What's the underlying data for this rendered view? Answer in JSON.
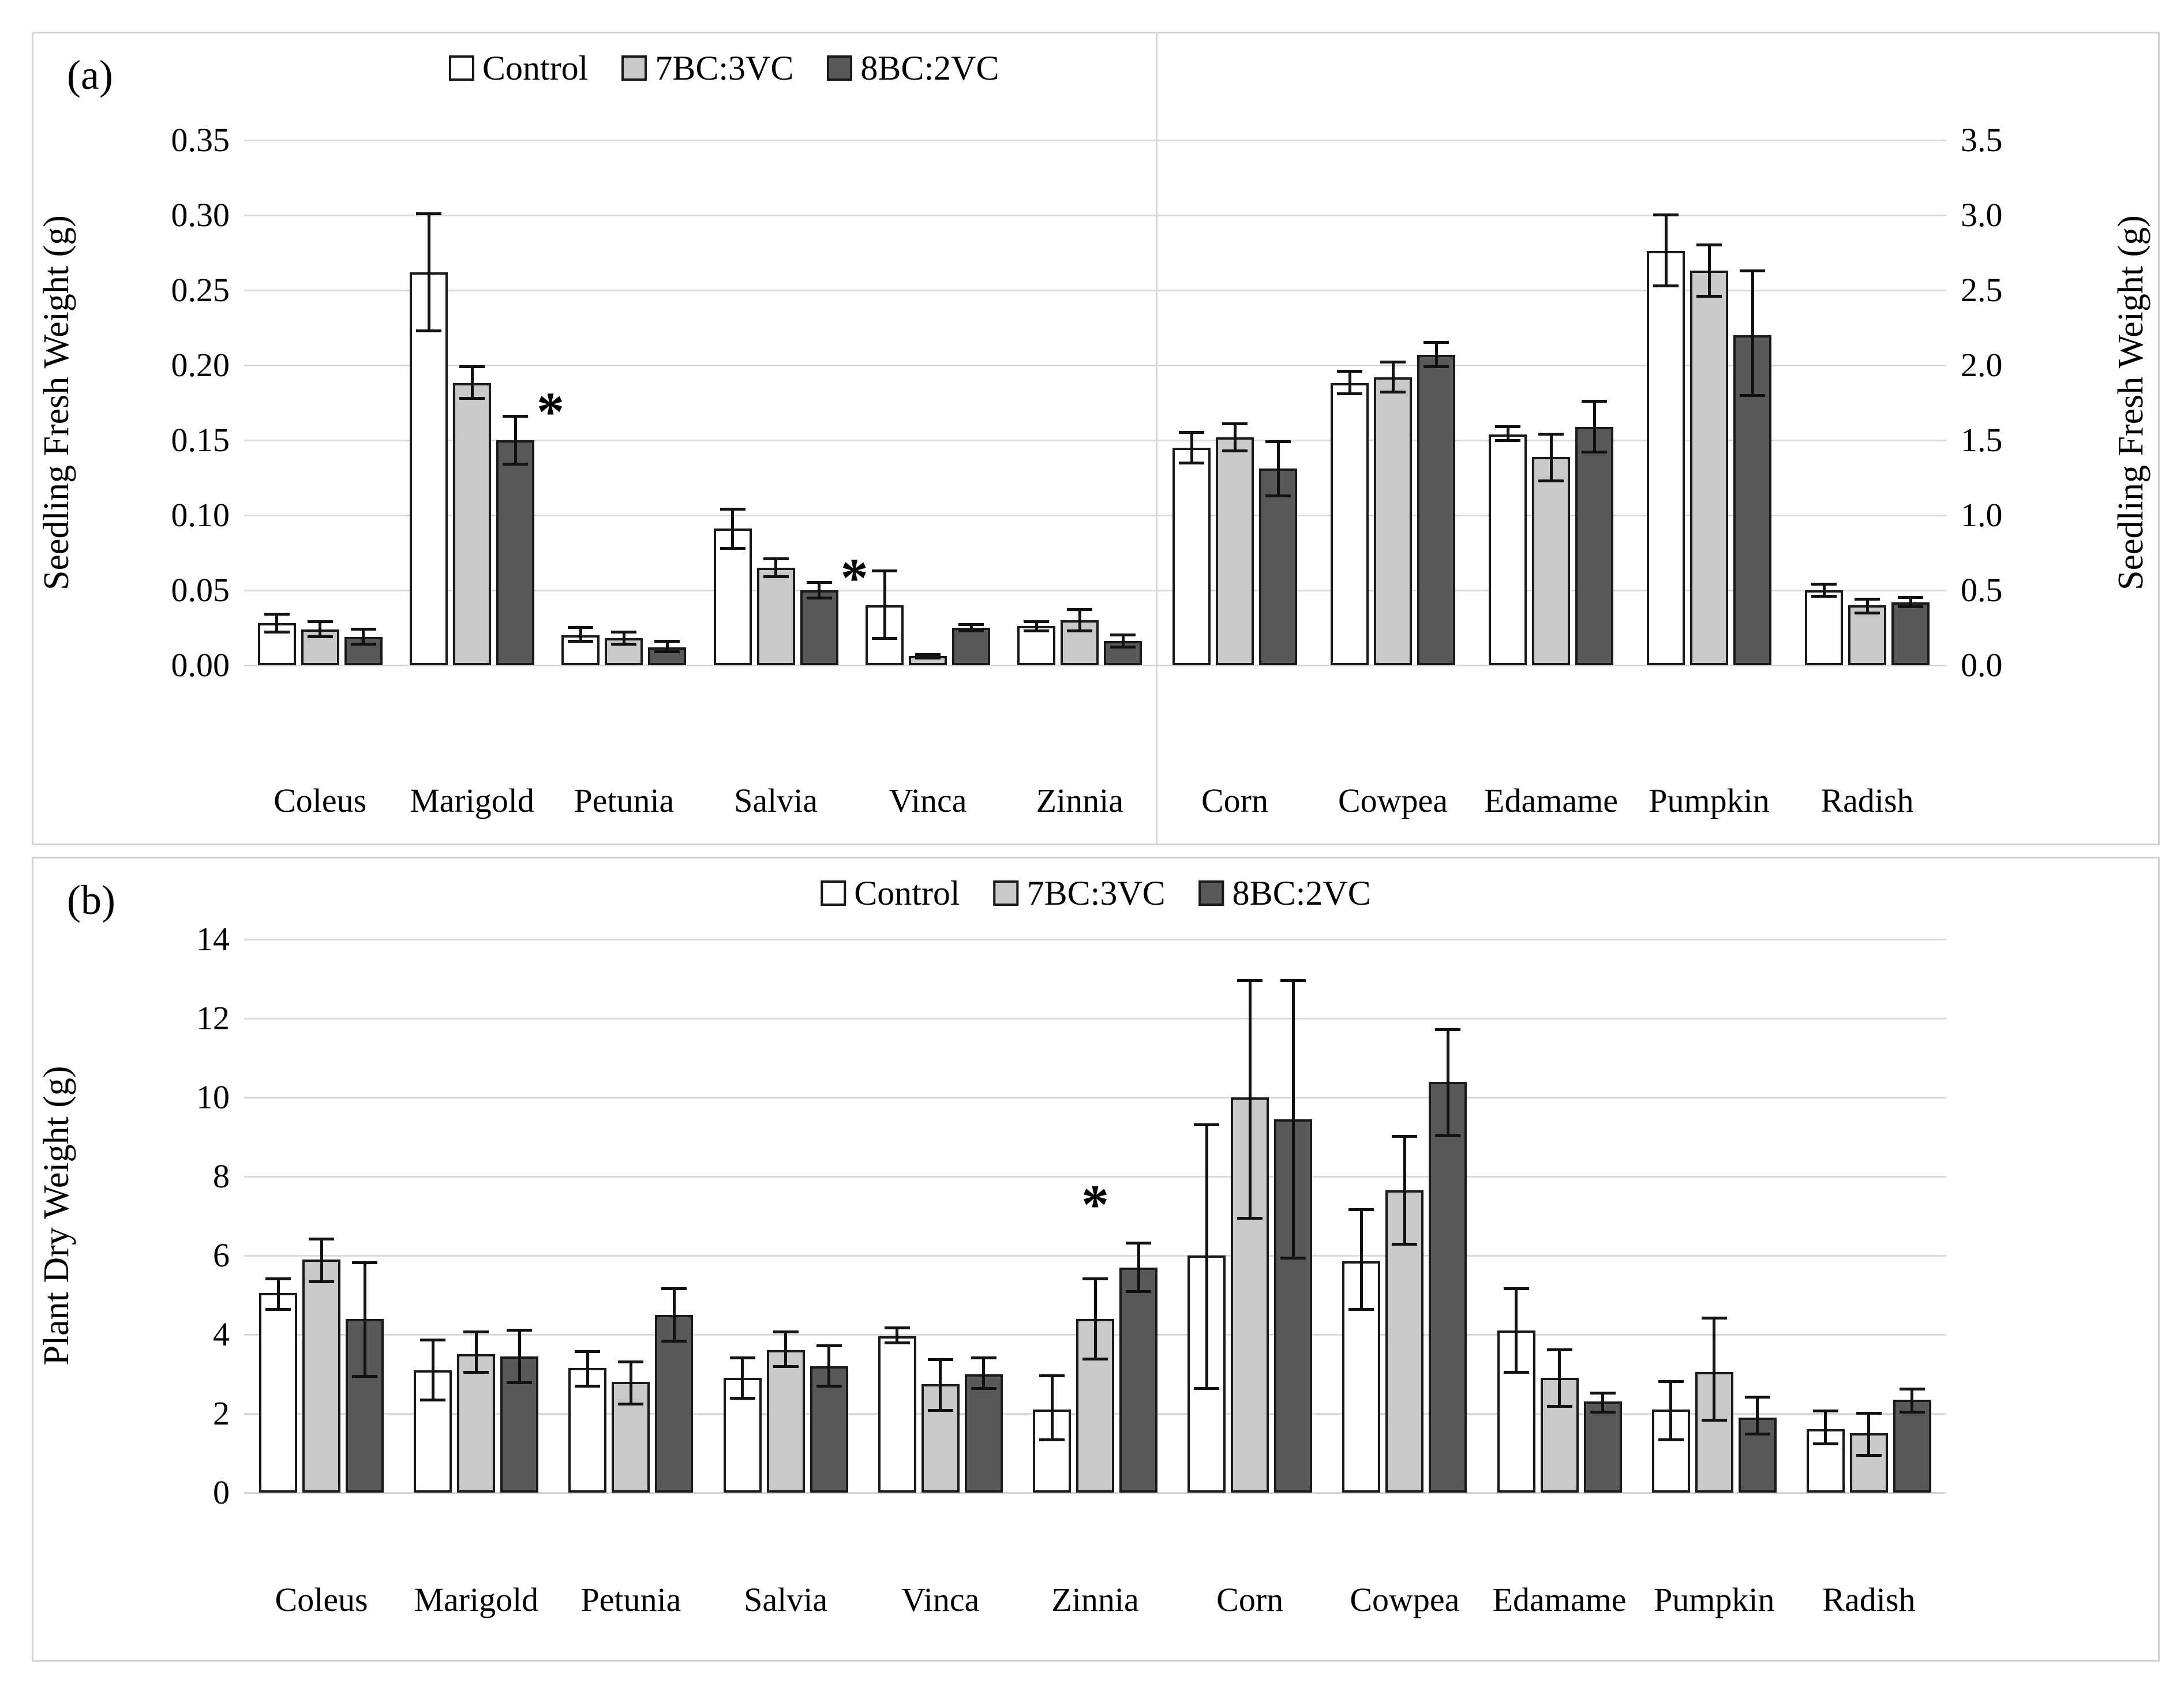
{
  "chart_data": [
    {
      "id": "panel_a",
      "type": "bar",
      "panel_label": "(a)",
      "title": "",
      "legend": [
        "Control",
        "7BC:3VC",
        "8BC:2VC"
      ],
      "legend_position": "top",
      "grid": true,
      "series_colors": [
        "#ffffff",
        "#c9c9c9",
        "#595959"
      ],
      "left_axis": {
        "label": "Seedling Fresh Weight (g)",
        "min": 0,
        "max": 0.35,
        "tick_step": 0.05,
        "ticks": [
          "0.00",
          "0.05",
          "0.10",
          "0.15",
          "0.20",
          "0.25",
          "0.30",
          "0.35"
        ]
      },
      "right_axis": {
        "label": "Seedling Fresh Weight (g)",
        "min": 0,
        "max": 3.5,
        "tick_step": 0.5,
        "ticks": [
          "0.0",
          "0.5",
          "1.0",
          "1.5",
          "2.0",
          "2.5",
          "3.0",
          "3.5"
        ]
      },
      "groups": [
        {
          "axis": "left",
          "categories": [
            "Coleus",
            "Marigold",
            "Petunia",
            "Salvia",
            "Vinca",
            "Zinnia"
          ],
          "series": [
            {
              "name": "Control",
              "values": [
                0.028,
                0.262,
                0.02,
                0.091,
                0.04,
                0.026
              ],
              "err_low": [
                0.021,
                0.222,
                0.015,
                0.077,
                0.017,
                0.022
              ],
              "err_high": [
                0.035,
                0.302,
                0.026,
                0.105,
                0.064,
                0.03
              ]
            },
            {
              "name": "7BC:3VC",
              "values": [
                0.024,
                0.188,
                0.018,
                0.065,
                0.006,
                0.03
              ],
              "err_low": [
                0.018,
                0.177,
                0.013,
                0.058,
                0.004,
                0.022
              ],
              "err_high": [
                0.03,
                0.2,
                0.023,
                0.072,
                0.008,
                0.038
              ]
            },
            {
              "name": "8BC:2VC",
              "values": [
                0.019,
                0.15,
                0.012,
                0.05,
                0.025,
                0.016
              ],
              "err_low": [
                0.013,
                0.133,
                0.008,
                0.044,
                0.022,
                0.011
              ],
              "err_high": [
                0.025,
                0.167,
                0.017,
                0.056,
                0.028,
                0.021
              ]
            }
          ]
        },
        {
          "axis": "right",
          "categories": [
            "Corn",
            "Cowpea",
            "Edamame",
            "Pumpkin",
            "Radish"
          ],
          "series": [
            {
              "name": "Control",
              "values": [
                1.45,
                1.88,
                1.54,
                2.76,
                0.5
              ],
              "err_low": [
                1.34,
                1.8,
                1.49,
                2.52,
                0.45
              ],
              "err_high": [
                1.56,
                1.97,
                1.6,
                3.01,
                0.55
              ]
            },
            {
              "name": "7BC:3VC",
              "values": [
                1.52,
                1.92,
                1.39,
                2.63,
                0.4
              ],
              "err_low": [
                1.42,
                1.81,
                1.22,
                2.45,
                0.34
              ],
              "err_high": [
                1.62,
                2.03,
                1.55,
                2.81,
                0.45
              ]
            },
            {
              "name": "8BC:2VC",
              "values": [
                1.31,
                2.07,
                1.59,
                2.2,
                0.42
              ],
              "err_low": [
                1.12,
                1.98,
                1.41,
                1.79,
                0.38
              ],
              "err_high": [
                1.5,
                2.16,
                1.77,
                2.64,
                0.46
              ]
            }
          ]
        }
      ],
      "annotations": [
        {
          "group": 0,
          "category": "Marigold",
          "series": 2,
          "text": "*",
          "placement": "right"
        },
        {
          "group": 0,
          "category": "Salvia",
          "series": 2,
          "text": "*",
          "placement": "right"
        }
      ]
    },
    {
      "id": "panel_b",
      "type": "bar",
      "panel_label": "(b)",
      "title": "",
      "legend": [
        "Control",
        "7BC:3VC",
        "8BC:2VC"
      ],
      "legend_position": "top",
      "grid": true,
      "series_colors": [
        "#ffffff",
        "#c9c9c9",
        "#595959"
      ],
      "left_axis": {
        "label": "Plant Dry Weight (g)",
        "min": 0,
        "max": 14,
        "tick_step": 2,
        "ticks": [
          "0",
          "2",
          "4",
          "6",
          "8",
          "10",
          "12",
          "14"
        ]
      },
      "groups": [
        {
          "axis": "left",
          "categories": [
            "Coleus",
            "Marigold",
            "Petunia",
            "Salvia",
            "Vinca",
            "Zinnia",
            "Corn",
            "Cowpea",
            "Edamame",
            "Pumpkin",
            "Radish"
          ],
          "series": [
            {
              "name": "Control",
              "values": [
                5.05,
                3.1,
                3.15,
                2.9,
                3.95,
                2.1,
                6.0,
                5.85,
                4.1,
                2.1,
                1.6
              ],
              "err_low": [
                4.6,
                2.3,
                2.65,
                2.35,
                3.75,
                1.3,
                2.6,
                4.6,
                3.0,
                1.3,
                1.2
              ],
              "err_high": [
                5.45,
                3.9,
                3.6,
                3.45,
                4.2,
                3.0,
                9.35,
                7.2,
                5.2,
                2.85,
                2.1
              ]
            },
            {
              "name": "7BC:3VC",
              "values": [
                5.9,
                3.5,
                2.8,
                3.6,
                2.75,
                4.4,
                10.0,
                7.65,
                2.9,
                3.05,
                1.5
              ],
              "err_low": [
                5.3,
                3.0,
                2.2,
                3.15,
                2.05,
                3.35,
                6.9,
                6.25,
                2.15,
                1.8,
                0.9
              ],
              "err_high": [
                6.45,
                4.1,
                3.35,
                4.1,
                3.4,
                5.45,
                13.0,
                9.05,
                3.65,
                4.45,
                2.05
              ]
            },
            {
              "name": "8BC:2VC",
              "values": [
                4.4,
                3.45,
                4.5,
                3.2,
                3.0,
                5.7,
                9.45,
                10.4,
                2.3,
                1.9,
                2.35
              ],
              "err_low": [
                2.9,
                2.75,
                3.8,
                2.65,
                2.6,
                5.05,
                5.9,
                9.0,
                2.0,
                1.45,
                2.0
              ],
              "err_high": [
                5.85,
                4.15,
                5.2,
                3.75,
                3.45,
                6.35,
                13.0,
                11.75,
                2.55,
                2.45,
                2.65
              ]
            }
          ]
        }
      ],
      "annotations": [
        {
          "group": 0,
          "category": "Zinnia",
          "series": 2,
          "text": "*",
          "placement": "top"
        }
      ]
    }
  ]
}
